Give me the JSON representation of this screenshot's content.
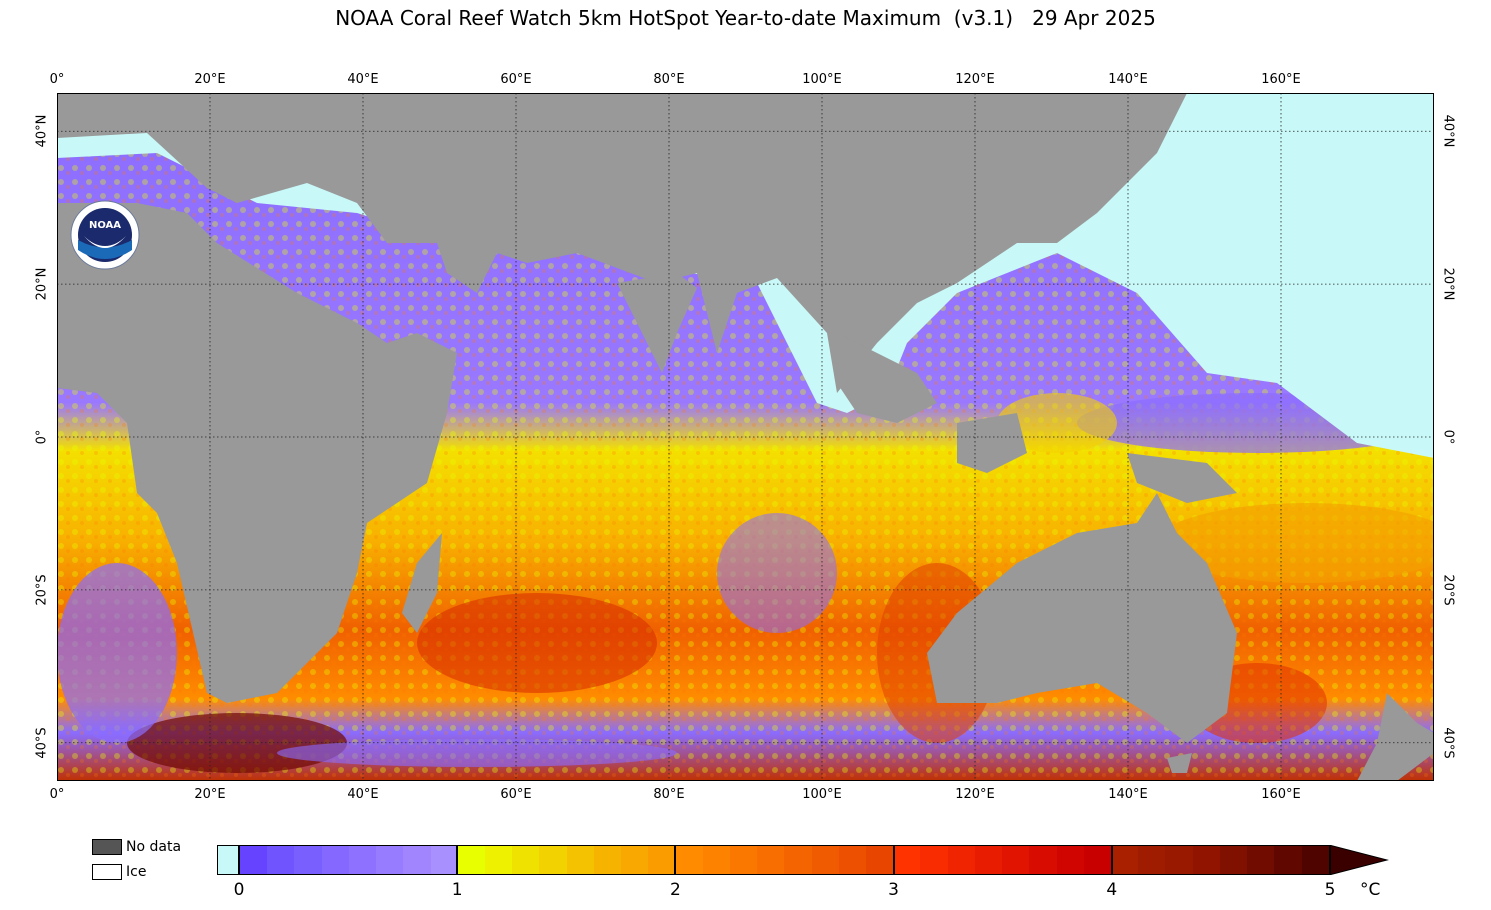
{
  "title": "NOAA Coral Reef Watch 5km HotSpot Year-to-date Maximum  (v3.1)   29 Apr 2025",
  "map": {
    "lon_range": [
      0,
      180
    ],
    "lat_range": [
      -45,
      45
    ],
    "lon_ticks": [
      "0°",
      "20°E",
      "40°E",
      "60°E",
      "80°E",
      "100°E",
      "120°E",
      "140°E",
      "160°E"
    ],
    "lon_tick_values": [
      0,
      20,
      40,
      60,
      80,
      100,
      120,
      140,
      160
    ],
    "lat_ticks": [
      "40°N",
      "20°N",
      "0°",
      "20°S",
      "40°S"
    ],
    "lat_tick_values": [
      40,
      20,
      0,
      -20,
      -40
    ],
    "gridlines": "dotted",
    "colors": {
      "land": "#999999",
      "ice": "#c8f8f8",
      "ocean_warm": "#ff9900",
      "ocean_cool": "#8866ff"
    }
  },
  "logo": {
    "name": "noaa-logo",
    "text": "NOAA"
  },
  "legend": {
    "no_data_label": "No data",
    "no_data_color": "#555555",
    "ice_label": "Ice",
    "ice_color": "#ffffff"
  },
  "colorbar": {
    "tick_labels": [
      "0",
      "1",
      "2",
      "3",
      "4",
      "5"
    ],
    "unit": "°C",
    "zero_color": "#c8f8f8",
    "segments": [
      "#6644ff",
      "#7055ff",
      "#7a5fff",
      "#8468ff",
      "#8e72ff",
      "#987cff",
      "#a085ff",
      "#a890ff",
      "#e8ff00",
      "#eef200",
      "#f0e200",
      "#f2d200",
      "#f4c200",
      "#f6b400",
      "#f8a800",
      "#fa9c00",
      "#ff8c00",
      "#fc8200",
      "#fa7800",
      "#f86e00",
      "#f46400",
      "#f05a00",
      "#ec5000",
      "#e84600",
      "#ff3300",
      "#f82c00",
      "#f02400",
      "#e81c00",
      "#e01400",
      "#d80c00",
      "#d00400",
      "#c80000",
      "#a82000",
      "#a01c00",
      "#981800",
      "#901400",
      "#801000",
      "#700c00",
      "#600800",
      "#500400"
    ]
  }
}
